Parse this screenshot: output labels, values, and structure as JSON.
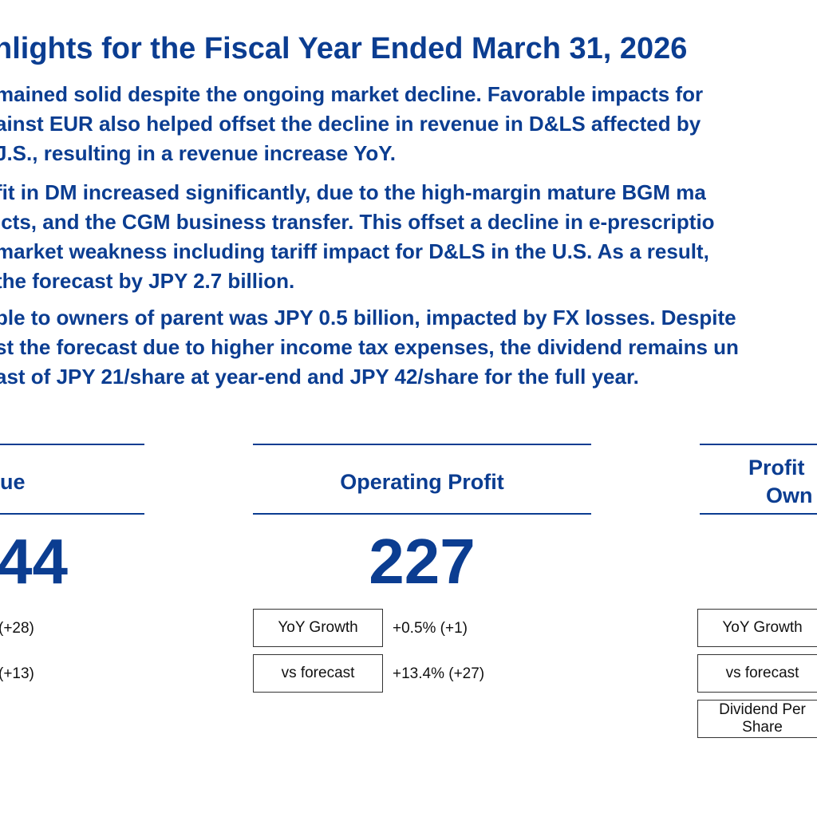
{
  "title": "hlights for the Fiscal Year Ended March 31, 2026",
  "paragraph1": [
    "mained solid despite the ongoing market decline. Favorable impacts for",
    "ainst EUR also helped offset the decline in revenue in D&LS affected by",
    "J.S., resulting in a revenue increase YoY."
  ],
  "paragraph2": [
    "fit in DM increased significantly, due to the high-margin mature BGM ma",
    "icts, and the CGM business transfer. This offset a decline in e-prescriptio",
    " market weakness including tariff impact for D&LS in the U.S. As a result,",
    " the forecast by JPY 2.7 billion."
  ],
  "paragraph3": [
    "ble to owners of parent was JPY 0.5 billion, impacted by FX losses. Despite",
    "st the forecast due to higher income tax expenses, the dividend remains un",
    "ast of JPY 21/share at year-end and JPY 42/share for the full year."
  ],
  "kpi_revenue": {
    "label": "ue",
    "value": "44",
    "yoy_value": "(+28)",
    "forecast_value": "(+13)"
  },
  "kpi_operating_profit": {
    "label": "Operating Profit",
    "value": "227",
    "yoy_label": "YoY Growth",
    "yoy_value": "+0.5% (+1)",
    "forecast_label": "vs forecast",
    "forecast_value": "+13.4% (+27)"
  },
  "kpi_profit_owners": {
    "label_line1": "Profit",
    "label_line2": "Own",
    "yoy_label": "YoY Growth",
    "forecast_label": "vs forecast",
    "dividend_label": "Dividend Per Share"
  }
}
